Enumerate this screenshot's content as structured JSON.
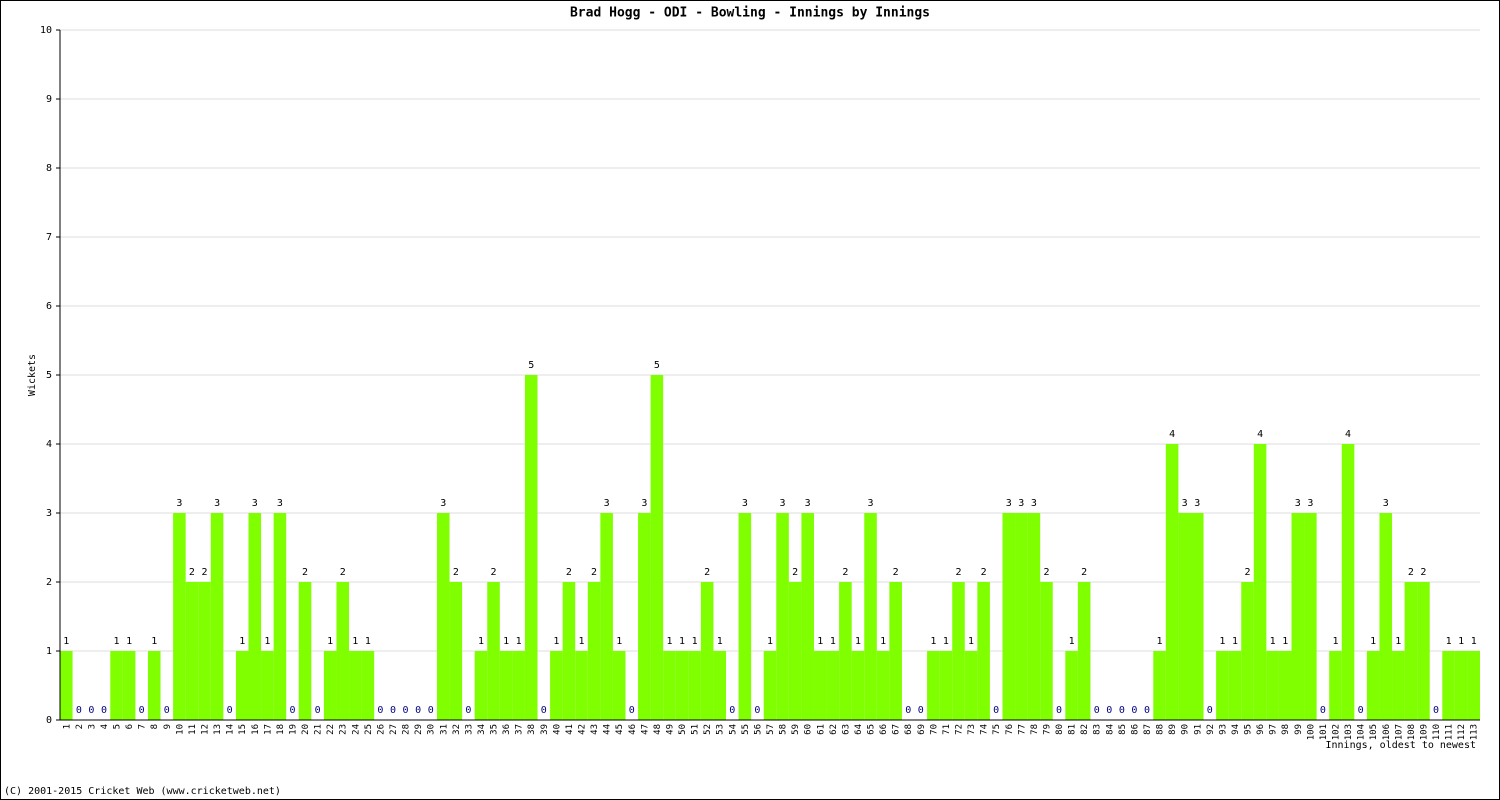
{
  "chart_data": {
    "type": "bar",
    "title": "Brad Hogg - ODI - Bowling - Innings by Innings",
    "y_label": "Wickets",
    "x_label": "Innings, oldest to newest",
    "color": "#80ff00",
    "grid": true,
    "categories": [
      "1",
      "2",
      "3",
      "4",
      "5",
      "6",
      "7",
      "8",
      "9",
      "10",
      "11",
      "12",
      "13",
      "14",
      "15",
      "16",
      "17",
      "18",
      "19",
      "20",
      "21",
      "22",
      "23",
      "24",
      "25",
      "26",
      "27",
      "28",
      "29",
      "30",
      "31",
      "32",
      "33",
      "34",
      "35",
      "36",
      "37",
      "38",
      "39",
      "40",
      "41",
      "42",
      "43",
      "44",
      "45",
      "46",
      "47",
      "48",
      "49",
      "50",
      "51",
      "52",
      "53",
      "54",
      "55",
      "56",
      "57",
      "58",
      "59",
      "60",
      "61",
      "62",
      "63",
      "64",
      "65",
      "66",
      "67",
      "68",
      "69",
      "70",
      "71",
      "72",
      "73",
      "74",
      "75",
      "76",
      "77",
      "78",
      "79",
      "80",
      "81",
      "82",
      "83",
      "84",
      "85",
      "86",
      "87",
      "88",
      "89",
      "90",
      "91",
      "92",
      "93",
      "94",
      "95",
      "96",
      "97",
      "98",
      "99",
      "100",
      "101",
      "102",
      "103",
      "104",
      "105",
      "106",
      "107",
      "108",
      "109",
      "110",
      "111",
      "112",
      "113"
    ],
    "values": [
      1,
      0,
      0,
      0,
      1,
      1,
      0,
      1,
      0,
      3,
      2,
      2,
      3,
      0,
      1,
      3,
      1,
      3,
      0,
      2,
      0,
      1,
      2,
      1,
      1,
      0,
      0,
      0,
      0,
      0,
      3,
      2,
      0,
      1,
      2,
      1,
      1,
      5,
      0,
      1,
      2,
      1,
      2,
      3,
      1,
      0,
      3,
      5,
      1,
      1,
      1,
      2,
      1,
      0,
      3,
      0,
      1,
      3,
      2,
      3,
      1,
      1,
      2,
      1,
      3,
      1,
      2,
      0,
      0,
      1,
      1,
      2,
      1,
      2,
      0,
      3,
      3,
      3,
      2,
      0,
      1,
      2,
      0,
      0,
      0,
      0,
      0,
      1,
      4,
      3,
      3,
      0,
      1,
      1,
      2,
      4,
      1,
      1,
      3,
      3,
      0,
      1,
      4,
      0,
      1,
      3,
      1,
      2,
      2,
      0,
      1,
      1,
      1
    ],
    "ylim": [
      0,
      10
    ],
    "yticks": [
      0,
      1,
      2,
      3,
      4,
      5,
      6,
      7,
      8,
      9,
      10
    ]
  },
  "footer": "(C) 2001-2015 Cricket Web (www.cricketweb.net)"
}
